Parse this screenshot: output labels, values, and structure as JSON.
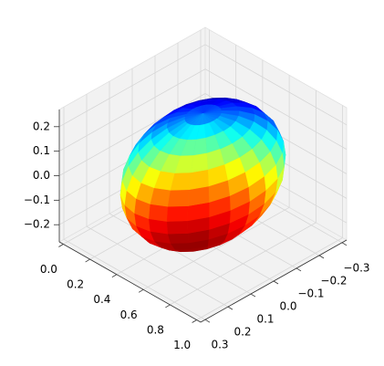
{
  "chart_data": {
    "type": "surface3d",
    "surface": {
      "shape": "ellipsoid",
      "center": [
        0.5,
        0,
        0
      ],
      "radii": [
        0.35,
        0.3,
        0.25
      ],
      "colormap": "jet"
    },
    "xlim": [
      -0.03,
      1.03
    ],
    "xticks": [
      {
        "value": 0,
        "label": "0.0"
      },
      {
        "value": 0.2,
        "label": "0.2"
      },
      {
        "value": 0.4,
        "label": "0.4"
      },
      {
        "value": 0.6,
        "label": "0.6"
      },
      {
        "value": 0.8,
        "label": "0.8"
      },
      {
        "value": 1,
        "label": "1.0"
      }
    ],
    "ylim": [
      -0.32,
      0.32
    ],
    "yticks": [
      {
        "value": -0.3,
        "label": "−0.3"
      },
      {
        "value": -0.2,
        "label": "−0.2"
      },
      {
        "value": -0.1,
        "label": "−0.1"
      },
      {
        "value": 0,
        "label": "0.0"
      },
      {
        "value": 0.1,
        "label": "0.1"
      },
      {
        "value": 0.2,
        "label": "0.2"
      },
      {
        "value": 0.3,
        "label": "0.3"
      }
    ],
    "zlim": [
      -0.27,
      0.27
    ],
    "zticks": [
      {
        "value": -0.2,
        "label": "−0.2"
      },
      {
        "value": -0.1,
        "label": "−0.1"
      },
      {
        "value": 0,
        "label": "0.0"
      },
      {
        "value": 0.1,
        "label": "0.1"
      },
      {
        "value": 0.2,
        "label": "0.2"
      }
    ],
    "grid": true
  }
}
